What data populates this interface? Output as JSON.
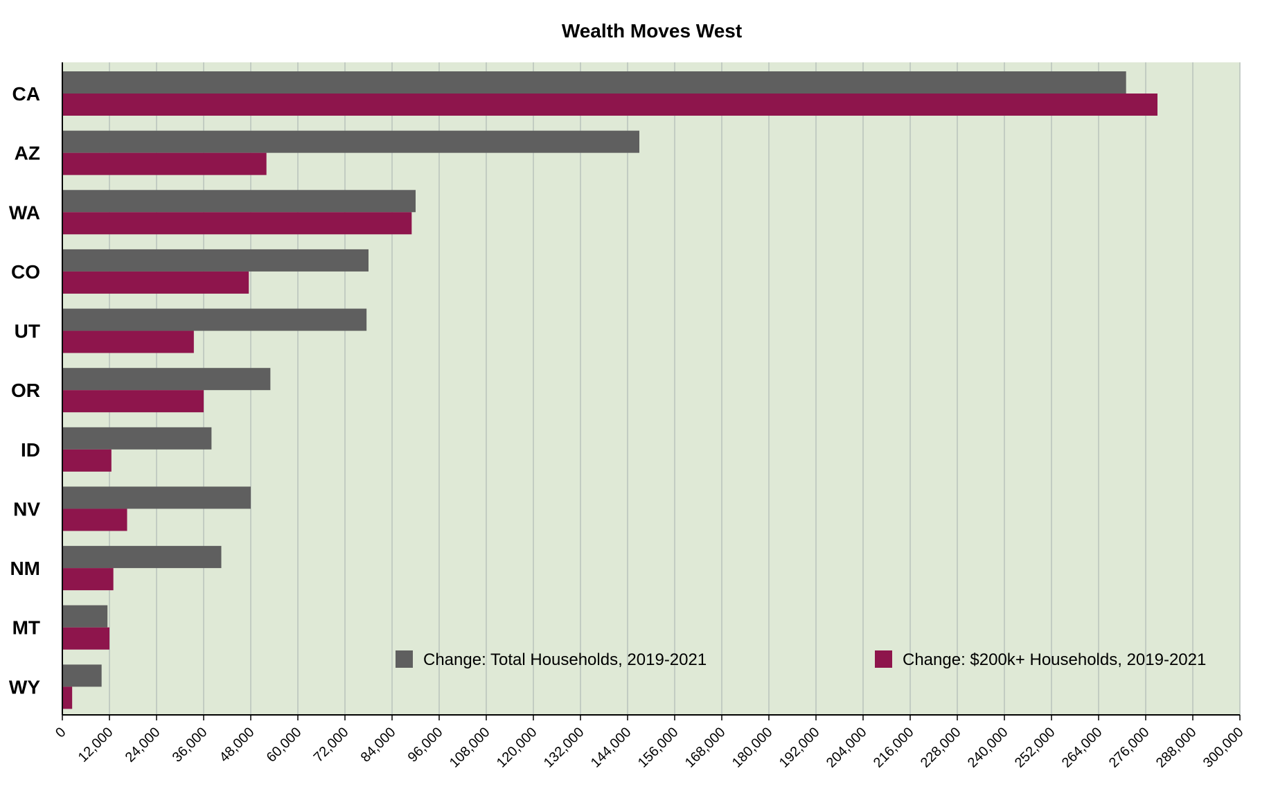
{
  "chart_data": {
    "type": "bar",
    "orientation": "horizontal",
    "title": "Wealth Moves West",
    "xlabel": "",
    "ylabel": "",
    "xlim": [
      0,
      300000
    ],
    "xtick_step": 12000,
    "x_ticks": [
      "0",
      "12,000",
      "24,000",
      "36,000",
      "48,000",
      "60,000",
      "72,000",
      "84,000",
      "96,000",
      "108,000",
      "120,000",
      "132,000",
      "144,000",
      "156,000",
      "168,000",
      "180,000",
      "192,000",
      "204,000",
      "216,000",
      "228,000",
      "240,000",
      "252,000",
      "264,000",
      "276,000",
      "288,000",
      "300,000"
    ],
    "categories": [
      "CA",
      "AZ",
      "WA",
      "CO",
      "UT",
      "OR",
      "ID",
      "NV",
      "NM",
      "MT",
      "WY"
    ],
    "series": [
      {
        "name": "Change: Total Households, 2019-2021",
        "color": "#5f5f5f",
        "values": [
          271000,
          147000,
          90000,
          78000,
          77500,
          53000,
          38000,
          48000,
          40500,
          11500,
          10000
        ]
      },
      {
        "name": "Change: $200k+ Households, 2019-2021",
        "color": "#8e154c",
        "values": [
          279000,
          52000,
          89000,
          47500,
          33500,
          36000,
          12500,
          16500,
          13000,
          12000,
          2500
        ]
      }
    ],
    "grid": "vertical",
    "plot_background": "#dfe9d6",
    "gridline_color": "#b9c2bb",
    "legend_position": "bottom-right"
  }
}
